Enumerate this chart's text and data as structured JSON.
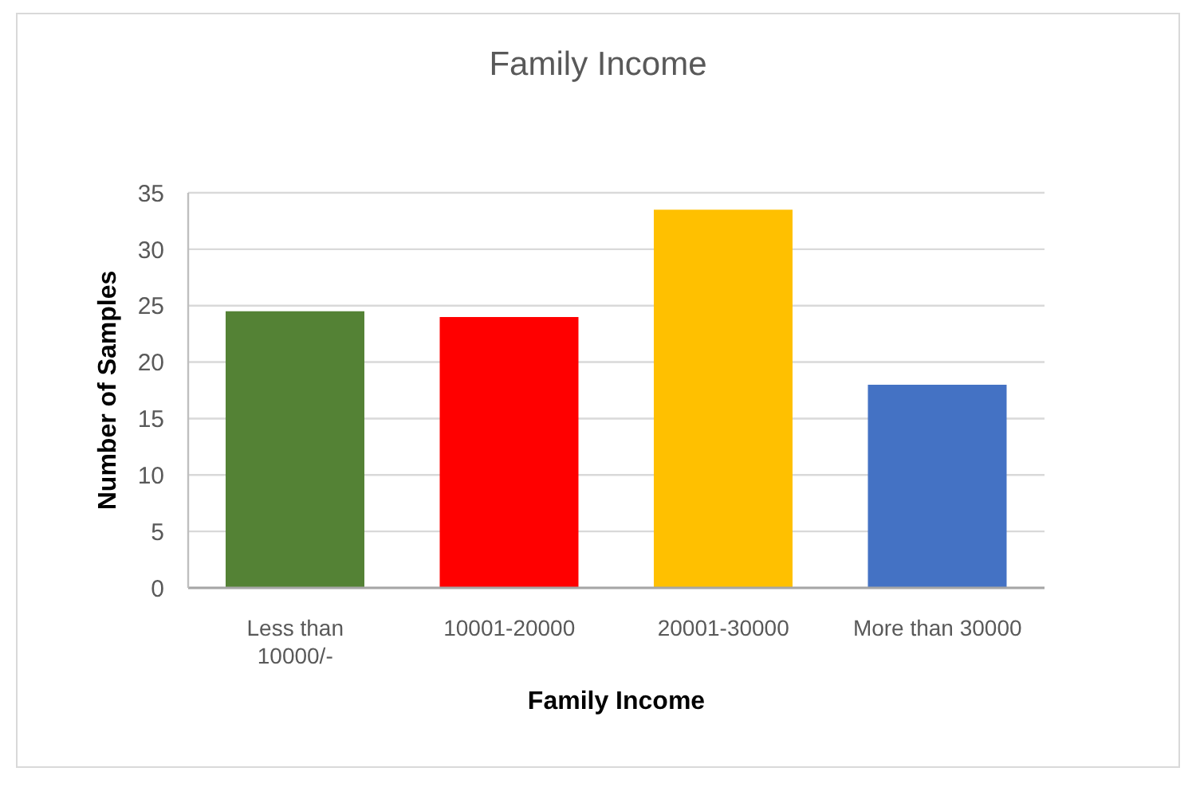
{
  "chart_data": {
    "type": "bar",
    "title": "Family Income",
    "xlabel": "Family Income",
    "ylabel": "Number of Samples",
    "categories": [
      "Less than 10000/-",
      "10001-20000",
      "20001-30000",
      "More than 30000"
    ],
    "values": [
      24.5,
      24,
      33.5,
      18
    ],
    "colors": [
      "#548235",
      "#ff0000",
      "#ffc000",
      "#4472c4"
    ],
    "ylim": [
      0,
      35
    ],
    "yticks": [
      0,
      5,
      10,
      15,
      20,
      25,
      30,
      35
    ],
    "grid": "y"
  }
}
